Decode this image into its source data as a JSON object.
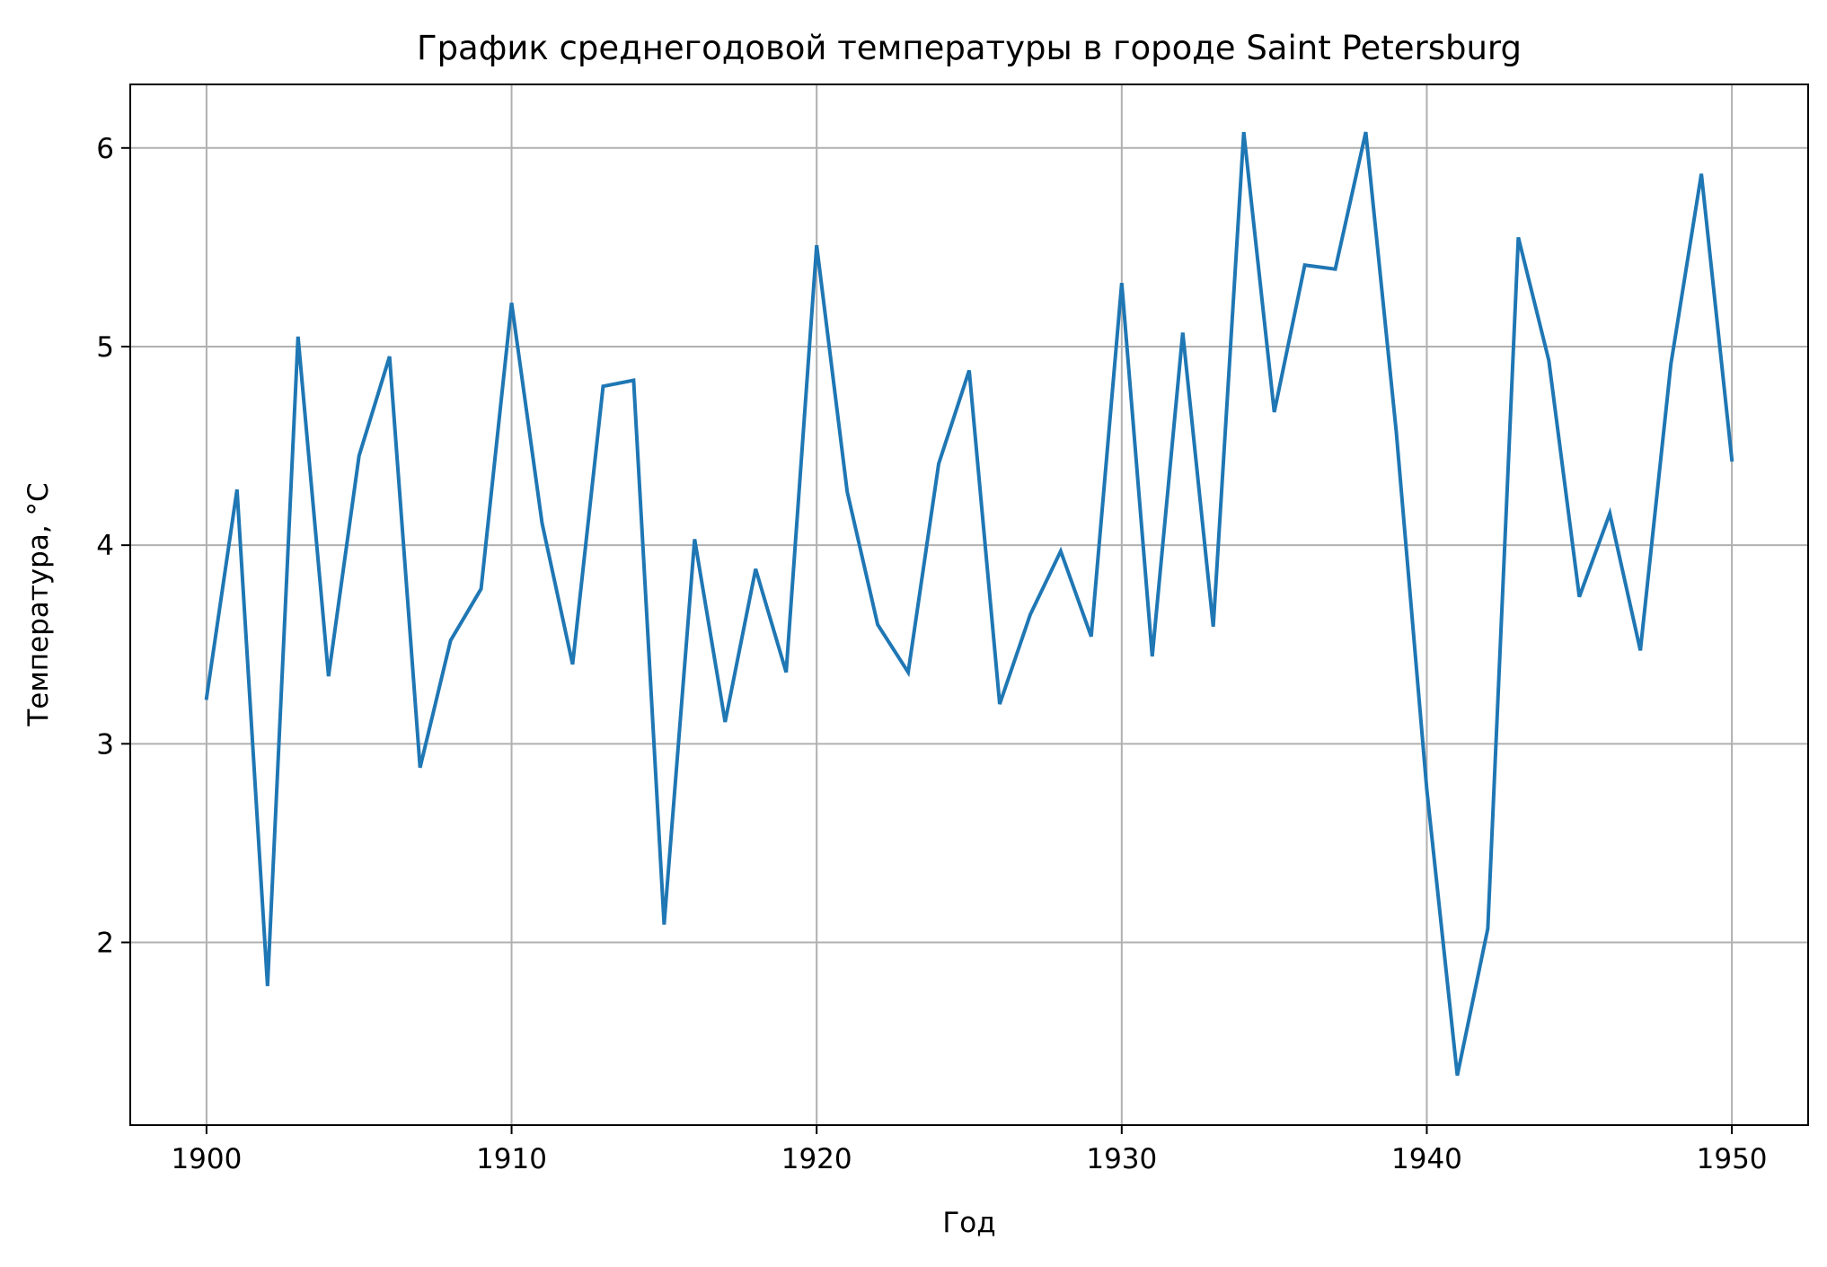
{
  "chart_data": {
    "type": "line",
    "title": "График среднегодовой температуры в городе Saint Petersburg",
    "xlabel": "Год",
    "ylabel": "Температура, °C",
    "xlim": [
      1897.5,
      1952.5
    ],
    "ylim": [
      1.08,
      6.32
    ],
    "xticks": [
      1900,
      1910,
      1920,
      1930,
      1940,
      1950
    ],
    "yticks": [
      2,
      3,
      4,
      5,
      6
    ],
    "grid": true,
    "line_color": "#1f77b4",
    "grid_color": "#b0b0b0",
    "series": [
      {
        "x": [
          1900,
          1901,
          1902,
          1903,
          1904,
          1905,
          1906,
          1907,
          1908,
          1909,
          1910,
          1911,
          1912,
          1913,
          1914,
          1915,
          1916,
          1917,
          1918,
          1919,
          1920,
          1921,
          1922,
          1923,
          1924,
          1925,
          1926,
          1927,
          1928,
          1929,
          1930,
          1931,
          1932,
          1933,
          1934,
          1935,
          1936,
          1937,
          1938,
          1939,
          1940,
          1941,
          1942,
          1943,
          1944,
          1945,
          1946,
          1947,
          1948,
          1949,
          1950
        ],
        "values": [
          3.23,
          4.28,
          1.78,
          5.05,
          3.34,
          4.45,
          4.95,
          2.88,
          3.52,
          3.78,
          5.22,
          4.11,
          3.4,
          4.8,
          4.83,
          2.09,
          4.03,
          3.11,
          3.88,
          3.36,
          5.51,
          4.27,
          3.6,
          3.36,
          4.41,
          4.88,
          3.2,
          3.65,
          3.97,
          3.54,
          5.32,
          3.44,
          5.07,
          3.59,
          6.08,
          4.67,
          5.41,
          5.39,
          6.08,
          4.57,
          2.77,
          1.33,
          2.07,
          5.55,
          4.93,
          3.74,
          4.16,
          3.47,
          4.91,
          5.87,
          4.43
        ]
      }
    ]
  }
}
